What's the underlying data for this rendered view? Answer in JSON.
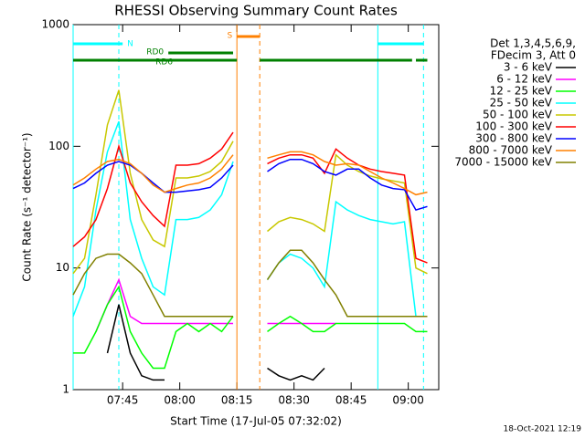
{
  "chart_data": {
    "type": "line",
    "title": "RHESSI Observing Summary Count Rates",
    "xlabel": "Start Time (17-Jul-05 07:32:02)",
    "ylabel": "Count Rate (s⁻¹ detector⁻¹)",
    "legend_header": [
      "Det 1,3,4,5,6,9,",
      "FDecim 3, Att 0"
    ],
    "footer": "18-Oct-2021 12:19",
    "log_y": true,
    "xlim": [
      "07:32",
      "09:08"
    ],
    "xticks": [
      "07:45",
      "08:00",
      "08:15",
      "08:30",
      "08:45",
      "09:00"
    ],
    "ylim": [
      1,
      1000
    ],
    "yticks": [
      1,
      10,
      100,
      1000
    ],
    "x": [
      "07:32",
      "07:35",
      "07:38",
      "07:41",
      "07:44",
      "07:47",
      "07:50",
      "07:53",
      "07:56",
      "07:59",
      "08:02",
      "08:05",
      "08:08",
      "08:11",
      "08:14",
      "08:17",
      "08:20",
      "08:23",
      "08:26",
      "08:29",
      "08:32",
      "08:35",
      "08:38",
      "08:41",
      "08:44",
      "08:47",
      "08:50",
      "08:53",
      "08:56",
      "08:59",
      "09:02",
      "09:05"
    ],
    "series": [
      {
        "name": "3 - 6 keV",
        "color": "#000000",
        "values": [
          null,
          null,
          null,
          2,
          5,
          2,
          1.3,
          1.2,
          1.2,
          null,
          null,
          null,
          null,
          null,
          null,
          null,
          null,
          1.5,
          1.3,
          1.2,
          1.3,
          1.2,
          1.5,
          null,
          null,
          null,
          null,
          null,
          null,
          null,
          null,
          null
        ]
      },
      {
        "name": "6 - 12 keV",
        "color": "#ff00ff",
        "values": [
          null,
          null,
          3,
          5,
          8,
          4,
          3.5,
          3.5,
          3.5,
          3.5,
          3.5,
          3.5,
          3.5,
          3.5,
          3.5,
          null,
          null,
          3.5,
          3.5,
          3.5,
          3.5,
          3.5,
          3.5,
          3.5,
          null,
          null,
          null,
          null,
          null,
          null,
          null,
          null
        ]
      },
      {
        "name": "12 - 25 keV",
        "color": "#00ff00",
        "values": [
          2,
          2,
          3,
          5,
          7,
          3,
          2,
          1.5,
          1.5,
          3,
          3.5,
          3,
          3.5,
          3,
          4,
          null,
          null,
          3,
          3.5,
          4,
          3.5,
          3,
          3,
          3.5,
          3.5,
          3.5,
          3.5,
          3.5,
          3.5,
          3.5,
          3,
          3
        ]
      },
      {
        "name": "25 - 50 keV",
        "color": "#00ffff",
        "values": [
          4,
          7,
          30,
          90,
          160,
          25,
          12,
          7,
          6,
          25,
          25,
          26,
          30,
          40,
          75,
          null,
          null,
          8,
          11,
          13,
          12,
          10,
          7,
          35,
          30,
          27,
          25,
          24,
          23,
          24,
          4,
          4
        ]
      },
      {
        "name": "50 - 100 keV",
        "color": "#c8c800",
        "values": [
          9,
          12,
          40,
          150,
          290,
          60,
          25,
          17,
          15,
          55,
          55,
          57,
          62,
          75,
          110,
          null,
          null,
          20,
          24,
          26,
          25,
          23,
          20,
          85,
          70,
          62,
          57,
          54,
          52,
          50,
          10,
          9
        ]
      },
      {
        "name": "100 - 300 keV",
        "color": "#ff0000",
        "values": [
          15,
          18,
          25,
          45,
          100,
          50,
          35,
          27,
          22,
          70,
          70,
          72,
          80,
          95,
          130,
          null,
          null,
          72,
          80,
          85,
          85,
          80,
          60,
          95,
          80,
          70,
          65,
          62,
          60,
          58,
          12,
          11
        ]
      },
      {
        "name": "300 - 800 keV",
        "color": "#0000ff",
        "values": [
          45,
          50,
          60,
          70,
          75,
          70,
          60,
          50,
          42,
          42,
          43,
          44,
          46,
          55,
          70,
          null,
          null,
          62,
          72,
          78,
          78,
          72,
          62,
          58,
          65,
          65,
          55,
          48,
          45,
          44,
          30,
          32
        ]
      },
      {
        "name": "800 - 7000 keV",
        "color": "#ff8000",
        "values": [
          48,
          55,
          65,
          75,
          78,
          72,
          60,
          48,
          42,
          45,
          48,
          50,
          55,
          65,
          85,
          null,
          null,
          80,
          85,
          90,
          90,
          85,
          75,
          70,
          72,
          70,
          62,
          55,
          50,
          45,
          40,
          42
        ]
      },
      {
        "name": "7000 - 15000 keV",
        "color": "#808000",
        "values": [
          6,
          9,
          12,
          13,
          13,
          11,
          9,
          6,
          4,
          4,
          4,
          4,
          4,
          4,
          4,
          null,
          null,
          8,
          11,
          14,
          14,
          11,
          8,
          6,
          4,
          4,
          4,
          4,
          4,
          4,
          4,
          4
        ]
      }
    ],
    "vlines": [
      {
        "x": "07:32",
        "color": "#00ffff",
        "dashed": false
      },
      {
        "x": "07:44",
        "color": "#00ffff",
        "dashed": true
      },
      {
        "x": "08:15",
        "color": "#ff8000",
        "dashed": false
      },
      {
        "x": "08:21",
        "color": "#ff8000",
        "dashed": true
      },
      {
        "x": "08:52",
        "color": "#00ffff",
        "dashed": false
      },
      {
        "x": "09:04",
        "color": "#00ffff",
        "dashed": true
      }
    ],
    "flags": [
      {
        "label": "S",
        "color": "#ff8000",
        "spans": [
          [
            "08:15",
            "08:21"
          ]
        ]
      },
      {
        "label": "N",
        "color": "#00ffff",
        "spans": [
          [
            "07:32",
            "07:45"
          ],
          [
            "08:52",
            "09:04"
          ]
        ]
      },
      {
        "label": "RD0",
        "color": "#008000",
        "spans": [
          [
            "07:57",
            "08:14"
          ]
        ]
      },
      {
        "label": "RD6",
        "color": "#008000",
        "spans": [
          [
            "07:32",
            "08:15"
          ],
          [
            "08:21",
            "09:01"
          ],
          [
            "09:02",
            "09:05"
          ]
        ]
      }
    ]
  }
}
